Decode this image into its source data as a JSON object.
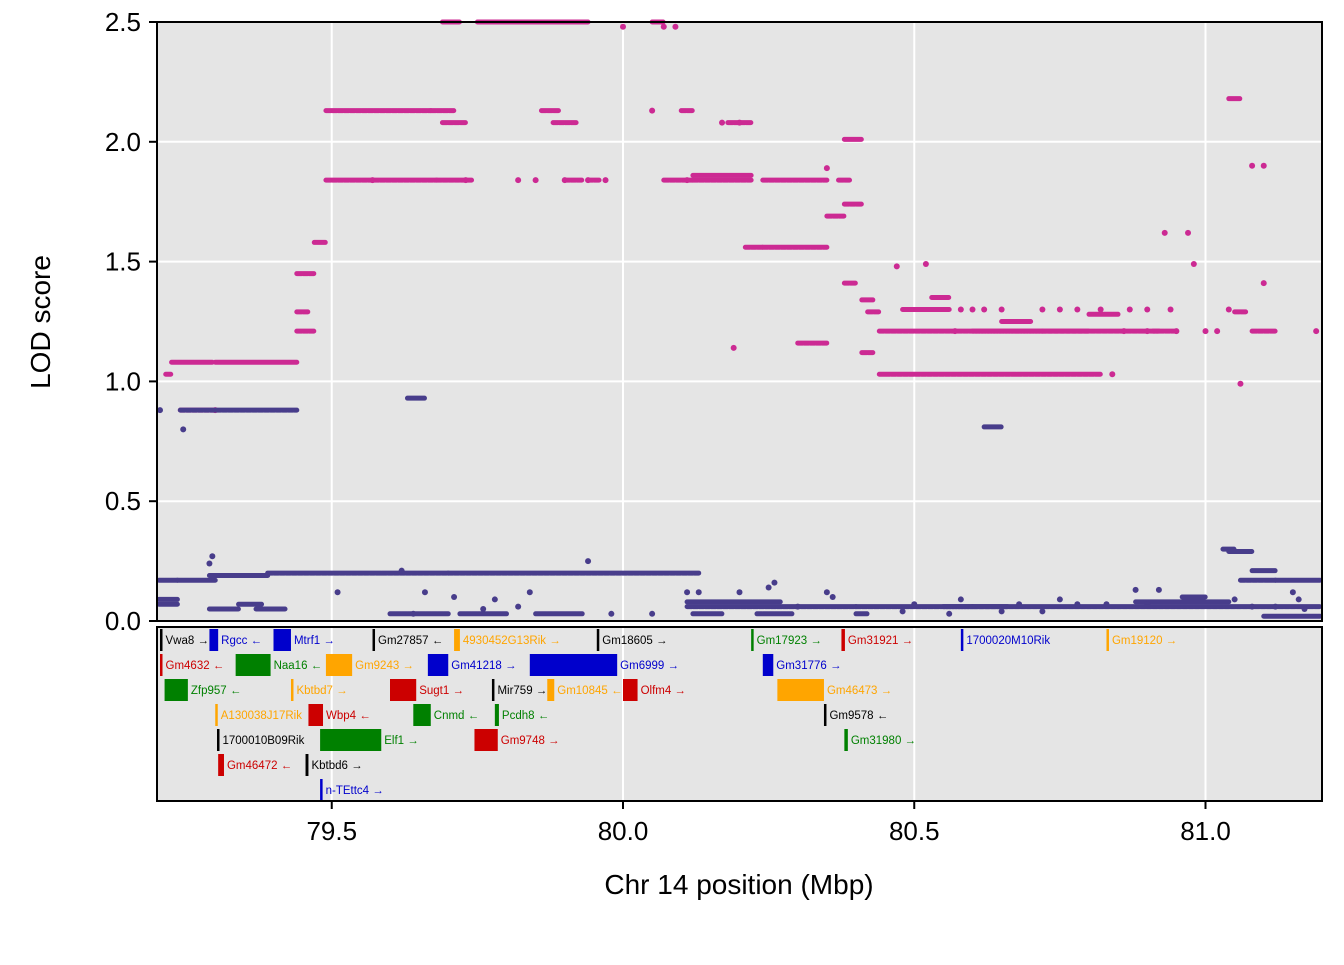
{
  "chart_data": {
    "type": "scatter",
    "title": "",
    "xlabel": "Chr 14 position (Mbp)",
    "ylabel": "LOD score",
    "xlim": [
      79.2,
      81.2
    ],
    "ylim": [
      0,
      2.5
    ],
    "x_ticks": [
      79.5,
      80.0,
      80.5,
      81.0
    ],
    "x_tick_labels": [
      "79.5",
      "80.0",
      "80.5",
      "81.0"
    ],
    "y_ticks": [
      0,
      0.5,
      1.0,
      1.5,
      2.0,
      2.5
    ],
    "y_tick_labels": [
      "0.0",
      "0.5",
      "1.0",
      "1.5",
      "2.0",
      "2.5"
    ],
    "grid": true,
    "legend": "none",
    "series": [
      {
        "color": "#cc2a93",
        "segments": [
          [
            79.215,
            79.225,
            1.03
          ],
          [
            79.225,
            79.295,
            1.08
          ],
          [
            79.24,
            79.3,
            0.88
          ],
          [
            79.3,
            79.44,
            1.08
          ],
          [
            79.44,
            79.47,
            1.45
          ],
          [
            79.44,
            79.47,
            1.21
          ],
          [
            79.44,
            79.46,
            1.29
          ],
          [
            79.47,
            79.49,
            1.58
          ],
          [
            79.49,
            79.67,
            2.13
          ],
          [
            79.49,
            79.68,
            1.84
          ],
          [
            79.67,
            79.71,
            2.13
          ],
          [
            79.69,
            79.73,
            2.08
          ],
          [
            79.68,
            79.74,
            1.84
          ],
          [
            79.69,
            79.72,
            2.5
          ],
          [
            79.75,
            79.78,
            2.5
          ],
          [
            79.78,
            79.86,
            2.5
          ],
          [
            79.86,
            79.94,
            2.5
          ],
          [
            79.86,
            79.89,
            2.13
          ],
          [
            79.88,
            79.92,
            2.08
          ],
          [
            79.94,
            79.96,
            1.84
          ],
          [
            79.9,
            79.93,
            1.84
          ],
          [
            80.05,
            80.07,
            2.5
          ],
          [
            80.07,
            80.12,
            1.84
          ],
          [
            80.1,
            80.12,
            2.13
          ],
          [
            80.12,
            80.22,
            1.86
          ],
          [
            80.12,
            80.22,
            1.84
          ],
          [
            80.18,
            80.22,
            2.08
          ],
          [
            80.21,
            80.24,
            1.56
          ],
          [
            80.24,
            80.35,
            1.56
          ],
          [
            80.24,
            80.35,
            1.84
          ],
          [
            80.3,
            80.35,
            1.16
          ],
          [
            80.35,
            80.38,
            1.69
          ],
          [
            80.37,
            80.39,
            1.84
          ],
          [
            80.38,
            80.41,
            1.74
          ],
          [
            80.38,
            80.41,
            2.01
          ],
          [
            80.38,
            80.4,
            1.41
          ],
          [
            80.41,
            80.43,
            1.34
          ],
          [
            80.41,
            80.43,
            1.12
          ],
          [
            80.42,
            80.44,
            1.29
          ],
          [
            80.44,
            80.8,
            1.21
          ],
          [
            80.44,
            80.82,
            1.03
          ],
          [
            80.48,
            80.56,
            1.3
          ],
          [
            80.53,
            80.56,
            1.35
          ],
          [
            80.6,
            80.72,
            1.21
          ],
          [
            80.65,
            80.7,
            1.25
          ],
          [
            80.72,
            80.92,
            1.21
          ],
          [
            80.8,
            80.85,
            1.28
          ],
          [
            80.91,
            80.95,
            1.21
          ],
          [
            81.04,
            81.06,
            2.18
          ],
          [
            81.08,
            81.12,
            1.21
          ],
          [
            81.05,
            81.07,
            1.29
          ]
        ],
        "points": [
          [
            79.3,
            0.88
          ],
          [
            79.57,
            1.84
          ],
          [
            79.73,
            1.84
          ],
          [
            79.82,
            1.84
          ],
          [
            79.85,
            1.84
          ],
          [
            79.9,
            1.84
          ],
          [
            79.94,
            1.84
          ],
          [
            79.97,
            1.84
          ],
          [
            80.0,
            2.48
          ],
          [
            80.05,
            2.13
          ],
          [
            80.07,
            2.48
          ],
          [
            80.09,
            2.48
          ],
          [
            80.11,
            1.84
          ],
          [
            80.2,
            2.08
          ],
          [
            80.17,
            2.08
          ],
          [
            80.19,
            1.14
          ],
          [
            80.35,
            1.89
          ],
          [
            80.47,
            1.48
          ],
          [
            80.52,
            1.49
          ],
          [
            80.57,
            1.21
          ],
          [
            80.6,
            1.3
          ],
          [
            80.75,
            1.3
          ],
          [
            80.84,
            1.03
          ],
          [
            80.86,
            1.21
          ],
          [
            80.9,
            1.21
          ],
          [
            80.95,
            1.21
          ],
          [
            80.9,
            1.3
          ],
          [
            80.93,
            1.62
          ],
          [
            80.97,
            1.62
          ],
          [
            80.98,
            1.49
          ],
          [
            81.0,
            1.21
          ],
          [
            81.02,
            1.21
          ],
          [
            81.04,
            1.3
          ],
          [
            81.06,
            0.99
          ],
          [
            81.08,
            1.9
          ],
          [
            81.1,
            1.9
          ],
          [
            81.1,
            1.41
          ],
          [
            81.19,
            1.21
          ],
          [
            80.58,
            1.3
          ],
          [
            80.62,
            1.3
          ],
          [
            80.65,
            1.3
          ],
          [
            80.72,
            1.3
          ],
          [
            80.78,
            1.3
          ],
          [
            80.82,
            1.3
          ],
          [
            80.87,
            1.3
          ],
          [
            80.94,
            1.3
          ]
        ]
      },
      {
        "color": "#483d8b",
        "segments": [
          [
            79.2,
            79.235,
            0.17
          ],
          [
            79.2,
            79.235,
            0.09
          ],
          [
            79.2,
            79.235,
            0.07
          ],
          [
            79.235,
            79.3,
            0.17
          ],
          [
            79.24,
            79.44,
            0.88
          ],
          [
            79.29,
            79.39,
            0.19
          ],
          [
            79.39,
            79.7,
            0.2
          ],
          [
            79.7,
            80.13,
            0.2
          ],
          [
            79.29,
            79.34,
            0.05
          ],
          [
            79.34,
            79.38,
            0.07
          ],
          [
            79.37,
            79.42,
            0.05
          ],
          [
            79.6,
            79.7,
            0.03
          ],
          [
            79.63,
            79.66,
            0.93
          ],
          [
            79.85,
            79.93,
            0.03
          ],
          [
            79.72,
            79.8,
            0.03
          ],
          [
            80.11,
            80.4,
            0.06
          ],
          [
            80.11,
            80.27,
            0.08
          ],
          [
            80.12,
            80.17,
            0.03
          ],
          [
            80.23,
            80.29,
            0.03
          ],
          [
            80.4,
            80.6,
            0.06
          ],
          [
            80.6,
            81.2,
            0.06
          ],
          [
            80.4,
            80.42,
            0.03
          ],
          [
            80.62,
            80.65,
            0.81
          ],
          [
            80.55,
            80.66,
            0.06
          ],
          [
            80.88,
            81.04,
            0.08
          ],
          [
            81.03,
            81.05,
            0.3
          ],
          [
            81.04,
            81.08,
            0.29
          ],
          [
            81.08,
            81.12,
            0.21
          ],
          [
            81.06,
            81.12,
            0.17
          ],
          [
            81.12,
            81.2,
            0.17
          ],
          [
            81.1,
            81.2,
            0.02
          ],
          [
            80.96,
            81.0,
            0.1
          ]
        ],
        "points": [
          [
            79.2,
            0.88
          ],
          [
            79.245,
            0.8
          ],
          [
            79.295,
            0.27
          ],
          [
            79.29,
            0.24
          ],
          [
            79.51,
            0.12
          ],
          [
            79.62,
            0.21
          ],
          [
            79.64,
            0.03
          ],
          [
            79.76,
            0.05
          ],
          [
            79.78,
            0.09
          ],
          [
            79.84,
            0.12
          ],
          [
            79.94,
            0.25
          ],
          [
            79.98,
            0.03
          ],
          [
            80.05,
            0.03
          ],
          [
            80.11,
            0.12
          ],
          [
            80.13,
            0.12
          ],
          [
            80.2,
            0.12
          ],
          [
            80.25,
            0.14
          ],
          [
            80.26,
            0.16
          ],
          [
            80.3,
            0.06
          ],
          [
            80.35,
            0.12
          ],
          [
            80.36,
            0.1
          ],
          [
            80.5,
            0.07
          ],
          [
            80.58,
            0.09
          ],
          [
            80.68,
            0.07
          ],
          [
            80.75,
            0.09
          ],
          [
            80.78,
            0.07
          ],
          [
            80.83,
            0.07
          ],
          [
            80.88,
            0.13
          ],
          [
            80.9,
            0.07
          ],
          [
            80.92,
            0.13
          ],
          [
            81.05,
            0.09
          ],
          [
            81.08,
            0.06
          ],
          [
            81.12,
            0.06
          ],
          [
            81.16,
            0.09
          ],
          [
            81.15,
            0.12
          ],
          [
            81.17,
            0.05
          ],
          [
            79.66,
            0.12
          ],
          [
            79.71,
            0.1
          ],
          [
            79.82,
            0.06
          ],
          [
            80.48,
            0.04
          ],
          [
            80.56,
            0.03
          ],
          [
            80.65,
            0.04
          ],
          [
            80.72,
            0.04
          ]
        ]
      }
    ],
    "genes": [
      {
        "name": "Vwa8",
        "label": "Vwa8 →",
        "start": 79.205,
        "end": 79.207,
        "row": 0,
        "color": "#000000"
      },
      {
        "name": "Rgcc",
        "label": "Rgcc ←",
        "start": 79.29,
        "end": 79.305,
        "row": 0,
        "color": "#0000cc"
      },
      {
        "name": "Mtrf1",
        "label": "Mtrf1 →",
        "start": 79.4,
        "end": 79.43,
        "row": 0,
        "color": "#0000cc"
      },
      {
        "name": "Gm27857",
        "label": "Gm27857 ←",
        "start": 79.57,
        "end": 79.572,
        "row": 0,
        "color": "#000000"
      },
      {
        "name": "4930452G13Rik",
        "label": "4930452G13Rik →",
        "start": 79.71,
        "end": 79.72,
        "row": 0,
        "color": "#ffa500"
      },
      {
        "name": "Gm18605",
        "label": "Gm18605 →",
        "start": 79.955,
        "end": 79.957,
        "row": 0,
        "color": "#000000"
      },
      {
        "name": "Gm17923",
        "label": "Gm17923 →",
        "start": 80.22,
        "end": 80.222,
        "row": 0,
        "color": "#008000"
      },
      {
        "name": "Gm31921",
        "label": "Gm31921 →",
        "start": 80.375,
        "end": 80.381,
        "row": 0,
        "color": "#cc0000"
      },
      {
        "name": "1700020M10Rik",
        "label": "1700020M10Rik",
        "start": 80.58,
        "end": 80.583,
        "row": 0,
        "color": "#0000cc"
      },
      {
        "name": "Gm19120",
        "label": "Gm19120 →",
        "start": 80.83,
        "end": 80.833,
        "row": 0,
        "color": "#ffa500"
      },
      {
        "name": "Gm4632",
        "label": "Gm4632 ←",
        "start": 79.2,
        "end": 79.202,
        "row": 1,
        "color": "#cc0000"
      },
      {
        "name": "Naa16",
        "label": "Naa16 ←",
        "start": 79.335,
        "end": 79.395,
        "row": 1,
        "color": "#008000"
      },
      {
        "name": "Gm9243",
        "label": "Gm9243 →",
        "start": 79.49,
        "end": 79.535,
        "row": 1,
        "color": "#ffa500"
      },
      {
        "name": "Gm41218",
        "label": "Gm41218 →",
        "start": 79.665,
        "end": 79.7,
        "row": 1,
        "color": "#0000cc"
      },
      {
        "name": "Gm6999",
        "label": "Gm6999 →",
        "start": 79.84,
        "end": 79.99,
        "row": 1,
        "color": "#0000cc"
      },
      {
        "name": "Gm31776",
        "label": "Gm31776 →",
        "start": 80.24,
        "end": 80.258,
        "row": 1,
        "color": "#0000cc"
      },
      {
        "name": "Zfp957",
        "label": "Zfp957 ←",
        "start": 79.213,
        "end": 79.253,
        "row": 2,
        "color": "#008000"
      },
      {
        "name": "Kbtbd7",
        "label": "Kbtbd7 →",
        "start": 79.43,
        "end": 79.434,
        "row": 2,
        "color": "#ffa500"
      },
      {
        "name": "Sugt1",
        "label": "Sugt1 →",
        "start": 79.6,
        "end": 79.645,
        "row": 2,
        "color": "#cc0000"
      },
      {
        "name": "Mir759",
        "label": "Mir759 →",
        "start": 79.775,
        "end": 79.777,
        "row": 2,
        "color": "#000000"
      },
      {
        "name": "Gm10845",
        "label": "Gm10845 ←",
        "start": 79.87,
        "end": 79.882,
        "row": 2,
        "color": "#ffa500"
      },
      {
        "name": "Olfm4",
        "label": "Olfm4 →",
        "start": 80.0,
        "end": 80.025,
        "row": 2,
        "color": "#cc0000"
      },
      {
        "name": "Gm46473",
        "label": "Gm46473 →",
        "start": 80.265,
        "end": 80.345,
        "row": 2,
        "color": "#ffa500"
      },
      {
        "name": "A130038J17Rik",
        "label": "A130038J17Rik",
        "start": 79.3,
        "end": 79.303,
        "row": 3,
        "color": "#ffa500"
      },
      {
        "name": "Wbp4",
        "label": "Wbp4 ←",
        "start": 79.46,
        "end": 79.485,
        "row": 3,
        "color": "#cc0000"
      },
      {
        "name": "Cnmd",
        "label": "Cnmd ←",
        "start": 79.64,
        "end": 79.67,
        "row": 3,
        "color": "#008000"
      },
      {
        "name": "Pcdh8",
        "label": "Pcdh8 ←",
        "start": 79.78,
        "end": 79.787,
        "row": 3,
        "color": "#008000"
      },
      {
        "name": "Gm9578",
        "label": "Gm9578 ←",
        "start": 80.345,
        "end": 80.347,
        "row": 3,
        "color": "#000000"
      },
      {
        "name": "1700010B09Rik",
        "label": "1700010B09Rik",
        "start": 79.303,
        "end": 79.306,
        "row": 4,
        "color": "#000000"
      },
      {
        "name": "Elf1",
        "label": "Elf1 →",
        "start": 79.48,
        "end": 79.585,
        "row": 4,
        "color": "#008000"
      },
      {
        "name": "Gm9748",
        "label": "Gm9748 →",
        "start": 79.745,
        "end": 79.785,
        "row": 4,
        "color": "#cc0000"
      },
      {
        "name": "Gm31980",
        "label": "Gm31980 →",
        "start": 80.38,
        "end": 80.386,
        "row": 4,
        "color": "#008000"
      },
      {
        "name": "Gm46472",
        "label": "Gm46472 ←",
        "start": 79.305,
        "end": 79.315,
        "row": 5,
        "color": "#cc0000"
      },
      {
        "name": "Kbtbd6",
        "label": "Kbtbd6 →",
        "start": 79.455,
        "end": 79.46,
        "row": 5,
        "color": "#000000"
      },
      {
        "name": "n-TEttc4",
        "label": "n-TEttc4 →",
        "start": 79.48,
        "end": 79.482,
        "row": 6,
        "color": "#0000cc"
      }
    ]
  }
}
